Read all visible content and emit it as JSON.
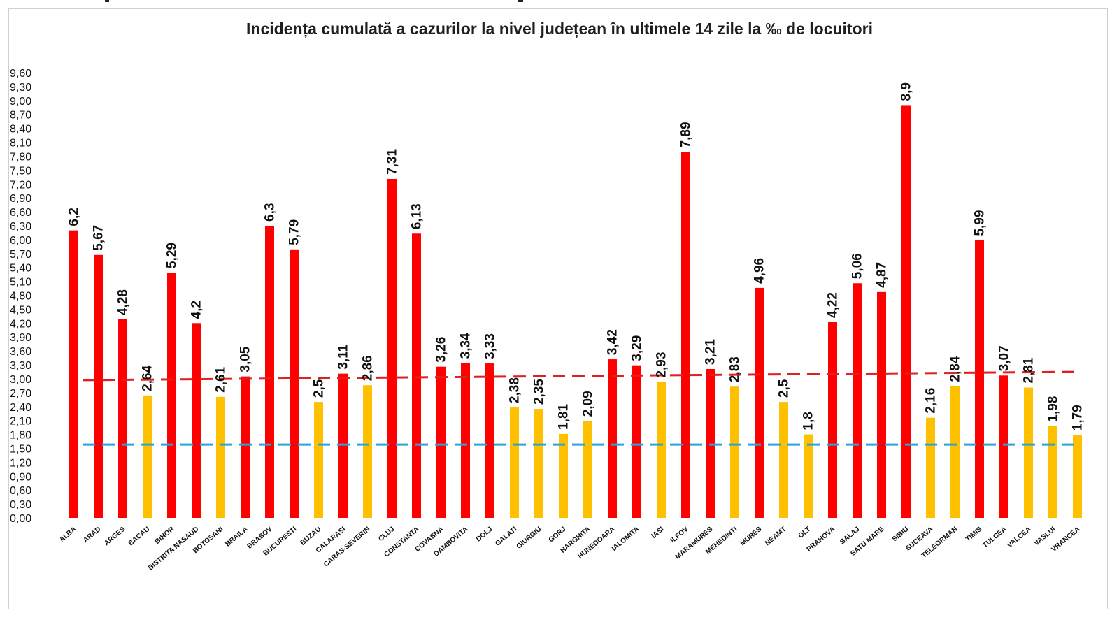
{
  "chart_data": {
    "type": "bar",
    "title": "Incidența cumulată a cazurilor la nivel județean în ultimele 14 zile la ‰ de locuitori",
    "xlabel": "",
    "ylabel": "",
    "ylim": [
      0,
      9.6
    ],
    "y_ticks": [
      "0,00",
      "0,30",
      "0,60",
      "0,90",
      "1,20",
      "1,50",
      "1,80",
      "2,10",
      "2,40",
      "2,70",
      "3,00",
      "3,30",
      "3,60",
      "3,90",
      "4,20",
      "4,50",
      "4,80",
      "5,10",
      "5,40",
      "5,70",
      "6,00",
      "6,30",
      "6,60",
      "6,90",
      "7,20",
      "7,50",
      "7,80",
      "8,10",
      "8,40",
      "8,70",
      "9,00",
      "9,30",
      "9,60"
    ],
    "categories": [
      "ALBA",
      "ARAD",
      "ARGES",
      "BACAU",
      "BIHOR",
      "BISTRITA NASAUD",
      "BOTOSANI",
      "BRAILA",
      "BRASOV",
      "BUCURESTI",
      "BUZAU",
      "CALARASI",
      "CARAS-SEVERIN",
      "CLUJ",
      "CONSTANTA",
      "COVASNA",
      "DAMBOVITA",
      "DOLJ",
      "GALATI",
      "GIURGIU",
      "GORJ",
      "HARGHITA",
      "HUNEDOARA",
      "IALOMITA",
      "IASI",
      "ILFOV",
      "MARAMURES",
      "MEHEDINTI",
      "MURES",
      "NEAMT",
      "OLT",
      "PRAHOVA",
      "SALAJ",
      "SATU MARE",
      "SIBIU",
      "SUCEAVA",
      "TELEORMAN",
      "TIMIS",
      "TULCEA",
      "VALCEA",
      "VASLUI",
      "VRANCEA"
    ],
    "values": [
      6.2,
      5.67,
      4.28,
      2.64,
      5.29,
      4.2,
      2.61,
      3.05,
      6.3,
      5.79,
      2.5,
      3.11,
      2.86,
      7.31,
      6.13,
      3.26,
      3.34,
      3.33,
      2.38,
      2.35,
      1.81,
      2.09,
      3.42,
      3.29,
      2.93,
      7.89,
      3.21,
      2.83,
      4.96,
      2.5,
      1.8,
      4.22,
      5.06,
      4.87,
      8.9,
      2.16,
      2.84,
      5.99,
      3.07,
      2.81,
      1.98,
      1.79
    ],
    "labels": [
      "6,2",
      "5,67",
      "4,28",
      "2,64",
      "5,29",
      "4,2",
      "2,61",
      "3,05",
      "6,3",
      "5,79",
      "2,5",
      "3,11",
      "2,86",
      "7,31",
      "6,13",
      "3,26",
      "3,34",
      "3,33",
      "2,38",
      "2,35",
      "1,81",
      "2,09",
      "3,42",
      "3,29",
      "2,93",
      "7,89",
      "3,21",
      "2,83",
      "4,96",
      "2,5",
      "1,8",
      "4,22",
      "5,06",
      "4,87",
      "8,9",
      "2,16",
      "2,84",
      "5,99",
      "3,07",
      "2,81",
      "1,98",
      "1,79"
    ],
    "colors": {
      "above_threshold": "#ff0000",
      "below_threshold": "#ffc000",
      "threshold_red_line": "#e02020",
      "threshold_blue_line": "#29a3dc"
    },
    "threshold_red": {
      "value_start": 2.97,
      "value_end": 3.15
    },
    "threshold_blue": {
      "value": 1.58
    }
  }
}
